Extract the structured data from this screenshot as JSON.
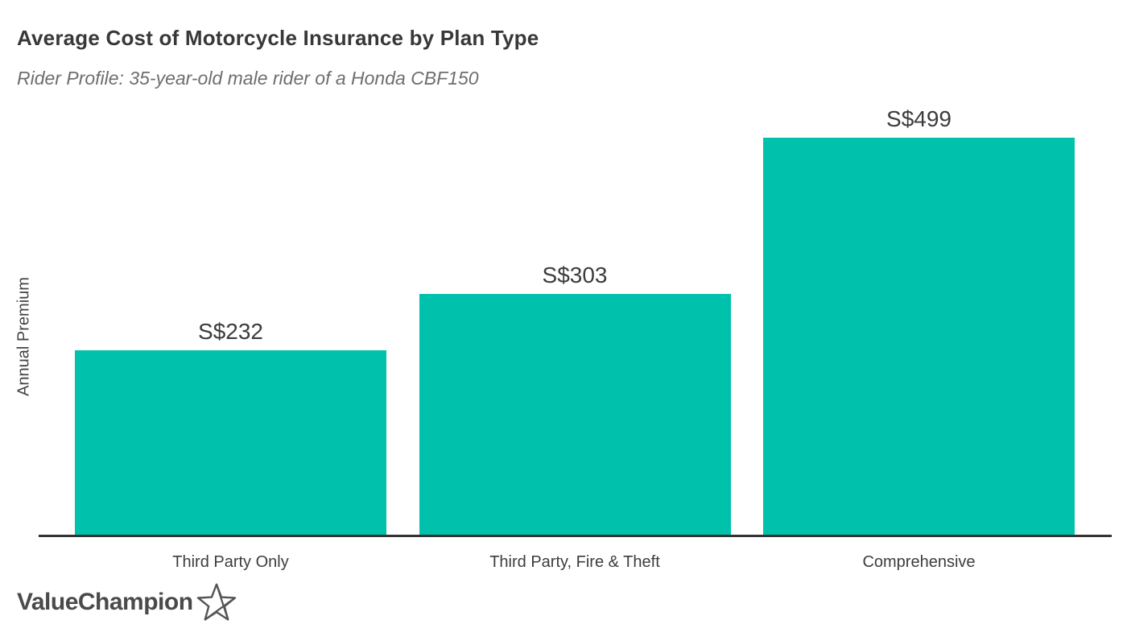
{
  "header": {
    "title": "Average Cost of Motorcycle Insurance by Plan Type",
    "subtitle": "Rider Profile: 35-year-old male rider of a Honda CBF150"
  },
  "chart_data": {
    "type": "bar",
    "title": "Average Cost of Motorcycle Insurance by Plan Type",
    "subtitle": "Rider Profile: 35-year-old male rider of a Honda CBF150",
    "categories": [
      "Third Party Only",
      "Third Party, Fire & Theft",
      "Comprehensive"
    ],
    "values": [
      232,
      303,
      499
    ],
    "value_labels": [
      "S$232",
      "S$303",
      "S$499"
    ],
    "xlabel": "",
    "ylabel": "Annual Premium",
    "ylim": [
      0,
      500
    ],
    "grid": false,
    "legend": false,
    "currency": "S$"
  },
  "colors": {
    "bar": "#00c2ac",
    "axis": "#333333",
    "title_text": "#383838",
    "subtitle_text": "#6e6e6e",
    "label_text": "#3d3d3d",
    "logo_text": "#4a4a4a"
  },
  "footer": {
    "logo_text": "ValueChampion",
    "logo_icon": "star-icon"
  }
}
